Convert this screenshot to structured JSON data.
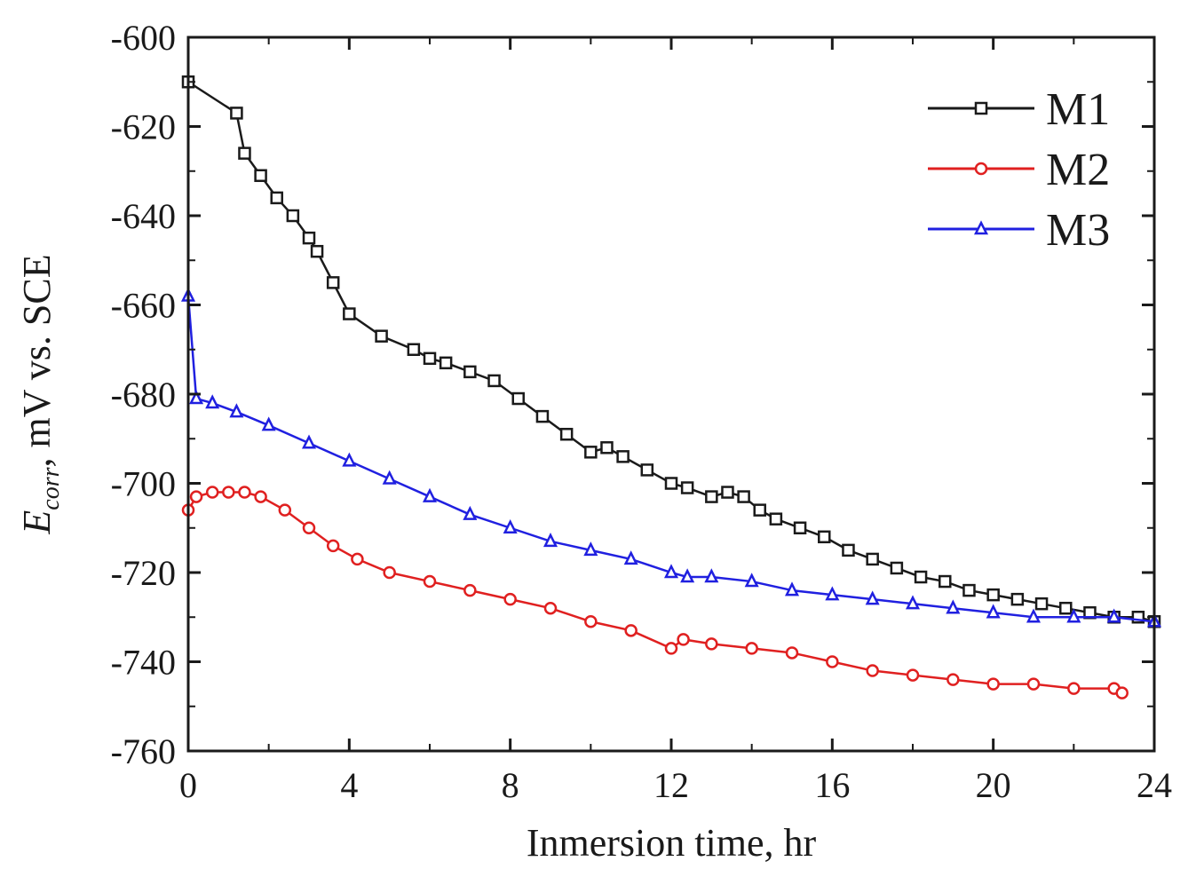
{
  "chart_data": {
    "type": "line",
    "xlabel": "Inmersion time, hr",
    "ylabel": {
      "symbol": "E",
      "subscript": "corr",
      "rest": ", mV vs. SCE"
    },
    "xlim": [
      0,
      24
    ],
    "ylim": [
      -760,
      -600
    ],
    "x_ticks": [
      0,
      4,
      8,
      12,
      16,
      20,
      24
    ],
    "y_ticks": [
      -600,
      -620,
      -640,
      -660,
      -680,
      -700,
      -720,
      -740,
      -760
    ],
    "x_tick_labels": [
      "0",
      "4",
      "8",
      "12",
      "16",
      "20",
      "24"
    ],
    "y_tick_labels": [
      "-600",
      "-620",
      "-640",
      "-660",
      "-680",
      "-700",
      "-720",
      "-740",
      "-760"
    ],
    "grid": false,
    "legend_position": "top-right",
    "series": [
      {
        "name": "M1",
        "color": "#1a1a1a",
        "marker": "square",
        "x": [
          0,
          1.2,
          1.4,
          1.8,
          2.2,
          2.6,
          3.0,
          3.2,
          3.6,
          4.0,
          4.8,
          5.6,
          6.0,
          6.4,
          7.0,
          7.6,
          8.2,
          8.8,
          9.4,
          10.0,
          10.4,
          10.8,
          11.4,
          12.0,
          12.4,
          13.0,
          13.4,
          13.8,
          14.2,
          14.6,
          15.2,
          15.8,
          16.4,
          17.0,
          17.6,
          18.2,
          18.8,
          19.4,
          20.0,
          20.6,
          21.2,
          21.8,
          22.4,
          23.0,
          23.6,
          24.0
        ],
        "y": [
          -610,
          -617,
          -626,
          -631,
          -636,
          -640,
          -645,
          -648,
          -655,
          -662,
          -667,
          -670,
          -672,
          -673,
          -675,
          -677,
          -681,
          -685,
          -689,
          -693,
          -692,
          -694,
          -697,
          -700,
          -701,
          -703,
          -702,
          -703,
          -706,
          -708,
          -710,
          -712,
          -715,
          -717,
          -719,
          -721,
          -722,
          -724,
          -725,
          -726,
          -727,
          -728,
          -729,
          -730,
          -730,
          -731
        ]
      },
      {
        "name": "M2",
        "color": "#e02020",
        "marker": "circle",
        "x": [
          0,
          0.2,
          0.6,
          1.0,
          1.4,
          1.8,
          2.4,
          3.0,
          3.6,
          4.2,
          5.0,
          6.0,
          7.0,
          8.0,
          9.0,
          10.0,
          11.0,
          12.0,
          12.3,
          13.0,
          14.0,
          15.0,
          16.0,
          17.0,
          18.0,
          19.0,
          20.0,
          21.0,
          22.0,
          23.0,
          23.2
        ],
        "y": [
          -706,
          -703,
          -702,
          -702,
          -702,
          -703,
          -706,
          -710,
          -714,
          -717,
          -720,
          -722,
          -724,
          -726,
          -728,
          -731,
          -733,
          -737,
          -735,
          -736,
          -737,
          -738,
          -740,
          -742,
          -743,
          -744,
          -745,
          -745,
          -746,
          -746,
          -747
        ]
      },
      {
        "name": "M3",
        "color": "#2020e0",
        "marker": "triangle",
        "x": [
          0,
          0.2,
          0.6,
          1.2,
          2.0,
          3.0,
          4.0,
          5.0,
          6.0,
          7.0,
          8.0,
          9.0,
          10.0,
          11.0,
          12.0,
          12.4,
          13.0,
          14.0,
          15.0,
          16.0,
          17.0,
          18.0,
          19.0,
          20.0,
          21.0,
          22.0,
          23.0,
          24.0
        ],
        "y": [
          -658,
          -681,
          -682,
          -684,
          -687,
          -691,
          -695,
          -699,
          -703,
          -707,
          -710,
          -713,
          -715,
          -717,
          -720,
          -721,
          -721,
          -722,
          -724,
          -725,
          -726,
          -727,
          -728,
          -729,
          -730,
          -730,
          -730,
          -731
        ]
      }
    ]
  }
}
